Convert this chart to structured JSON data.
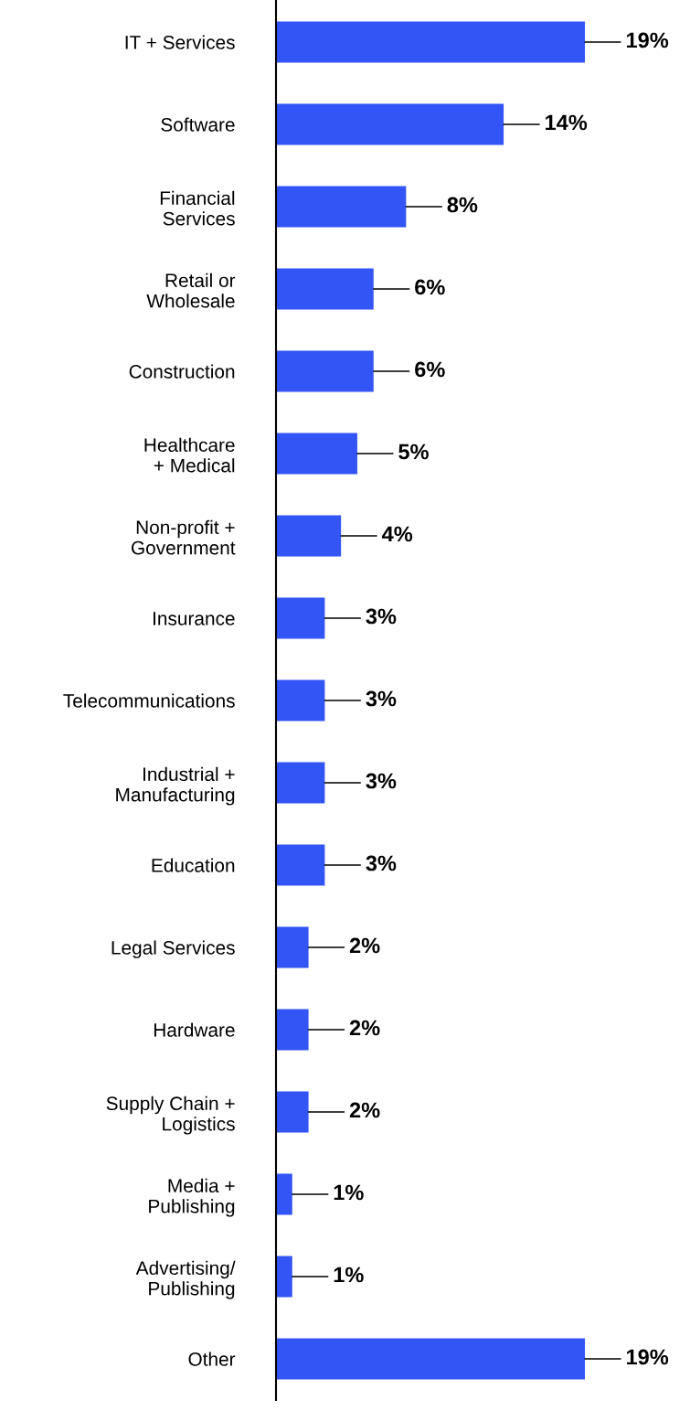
{
  "chart_data": {
    "type": "bar",
    "orientation": "horizontal",
    "grid": false,
    "legend": false,
    "tick_labels": "y",
    "categories": [
      "IT + Services",
      "Software",
      "Financial\nServices",
      "Retail or\nWholesale",
      "Construction",
      "Healthcare\n+ Medical",
      "Non-profit +\nGovernment",
      "Insurance",
      "Telecommunications",
      "Industrial +\nManufacturing",
      "Education",
      "Legal Services",
      "Hardware",
      "Supply Chain +\nLogistics",
      "Media +\nPublishing",
      "Advertising/\nPublishing",
      "Other"
    ],
    "values": [
      19,
      14,
      8,
      6,
      6,
      5,
      4,
      3,
      3,
      3,
      3,
      2,
      2,
      2,
      1,
      1,
      19
    ],
    "value_labels": [
      "19%",
      "14%",
      "8%",
      "6%",
      "6%",
      "5%",
      "4%",
      "3%",
      "3%",
      "3%",
      "3%",
      "2%",
      "2%",
      "2%",
      "1%",
      "1%",
      "19%"
    ],
    "color": "#3355f5"
  }
}
